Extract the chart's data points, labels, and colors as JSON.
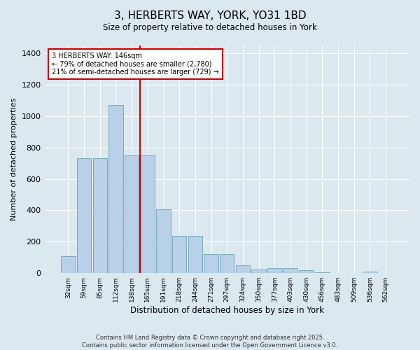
{
  "title_line1": "3, HERBERTS WAY, YORK, YO31 1BD",
  "title_line2": "Size of property relative to detached houses in York",
  "xlabel": "Distribution of detached houses by size in York",
  "ylabel": "Number of detached properties",
  "categories": [
    "32sqm",
    "59sqm",
    "85sqm",
    "112sqm",
    "138sqm",
    "165sqm",
    "191sqm",
    "218sqm",
    "244sqm",
    "271sqm",
    "297sqm",
    "324sqm",
    "350sqm",
    "377sqm",
    "403sqm",
    "430sqm",
    "456sqm",
    "483sqm",
    "509sqm",
    "536sqm",
    "562sqm"
  ],
  "values": [
    110,
    730,
    730,
    1070,
    750,
    750,
    405,
    238,
    238,
    120,
    120,
    50,
    25,
    30,
    30,
    20,
    5,
    0,
    0,
    10,
    0
  ],
  "bar_color": "#b8d0e8",
  "bar_edge_color": "#7aaabb",
  "background_color": "#dce8f0",
  "grid_color": "#ffffff",
  "vline_color": "#cc0000",
  "vline_pos": 4.5,
  "annotation_text": "3 HERBERTS WAY: 146sqm\n← 79% of detached houses are smaller (2,780)\n21% of semi-detached houses are larger (729) →",
  "annotation_box_color": "#cc0000",
  "ylim": [
    0,
    1450
  ],
  "yticks": [
    0,
    200,
    400,
    600,
    800,
    1000,
    1200,
    1400
  ],
  "footer_line1": "Contains HM Land Registry data © Crown copyright and database right 2025.",
  "footer_line2": "Contains public sector information licensed under the Open Government Licence v3.0.",
  "figsize": [
    6.0,
    5.0
  ],
  "dpi": 100
}
